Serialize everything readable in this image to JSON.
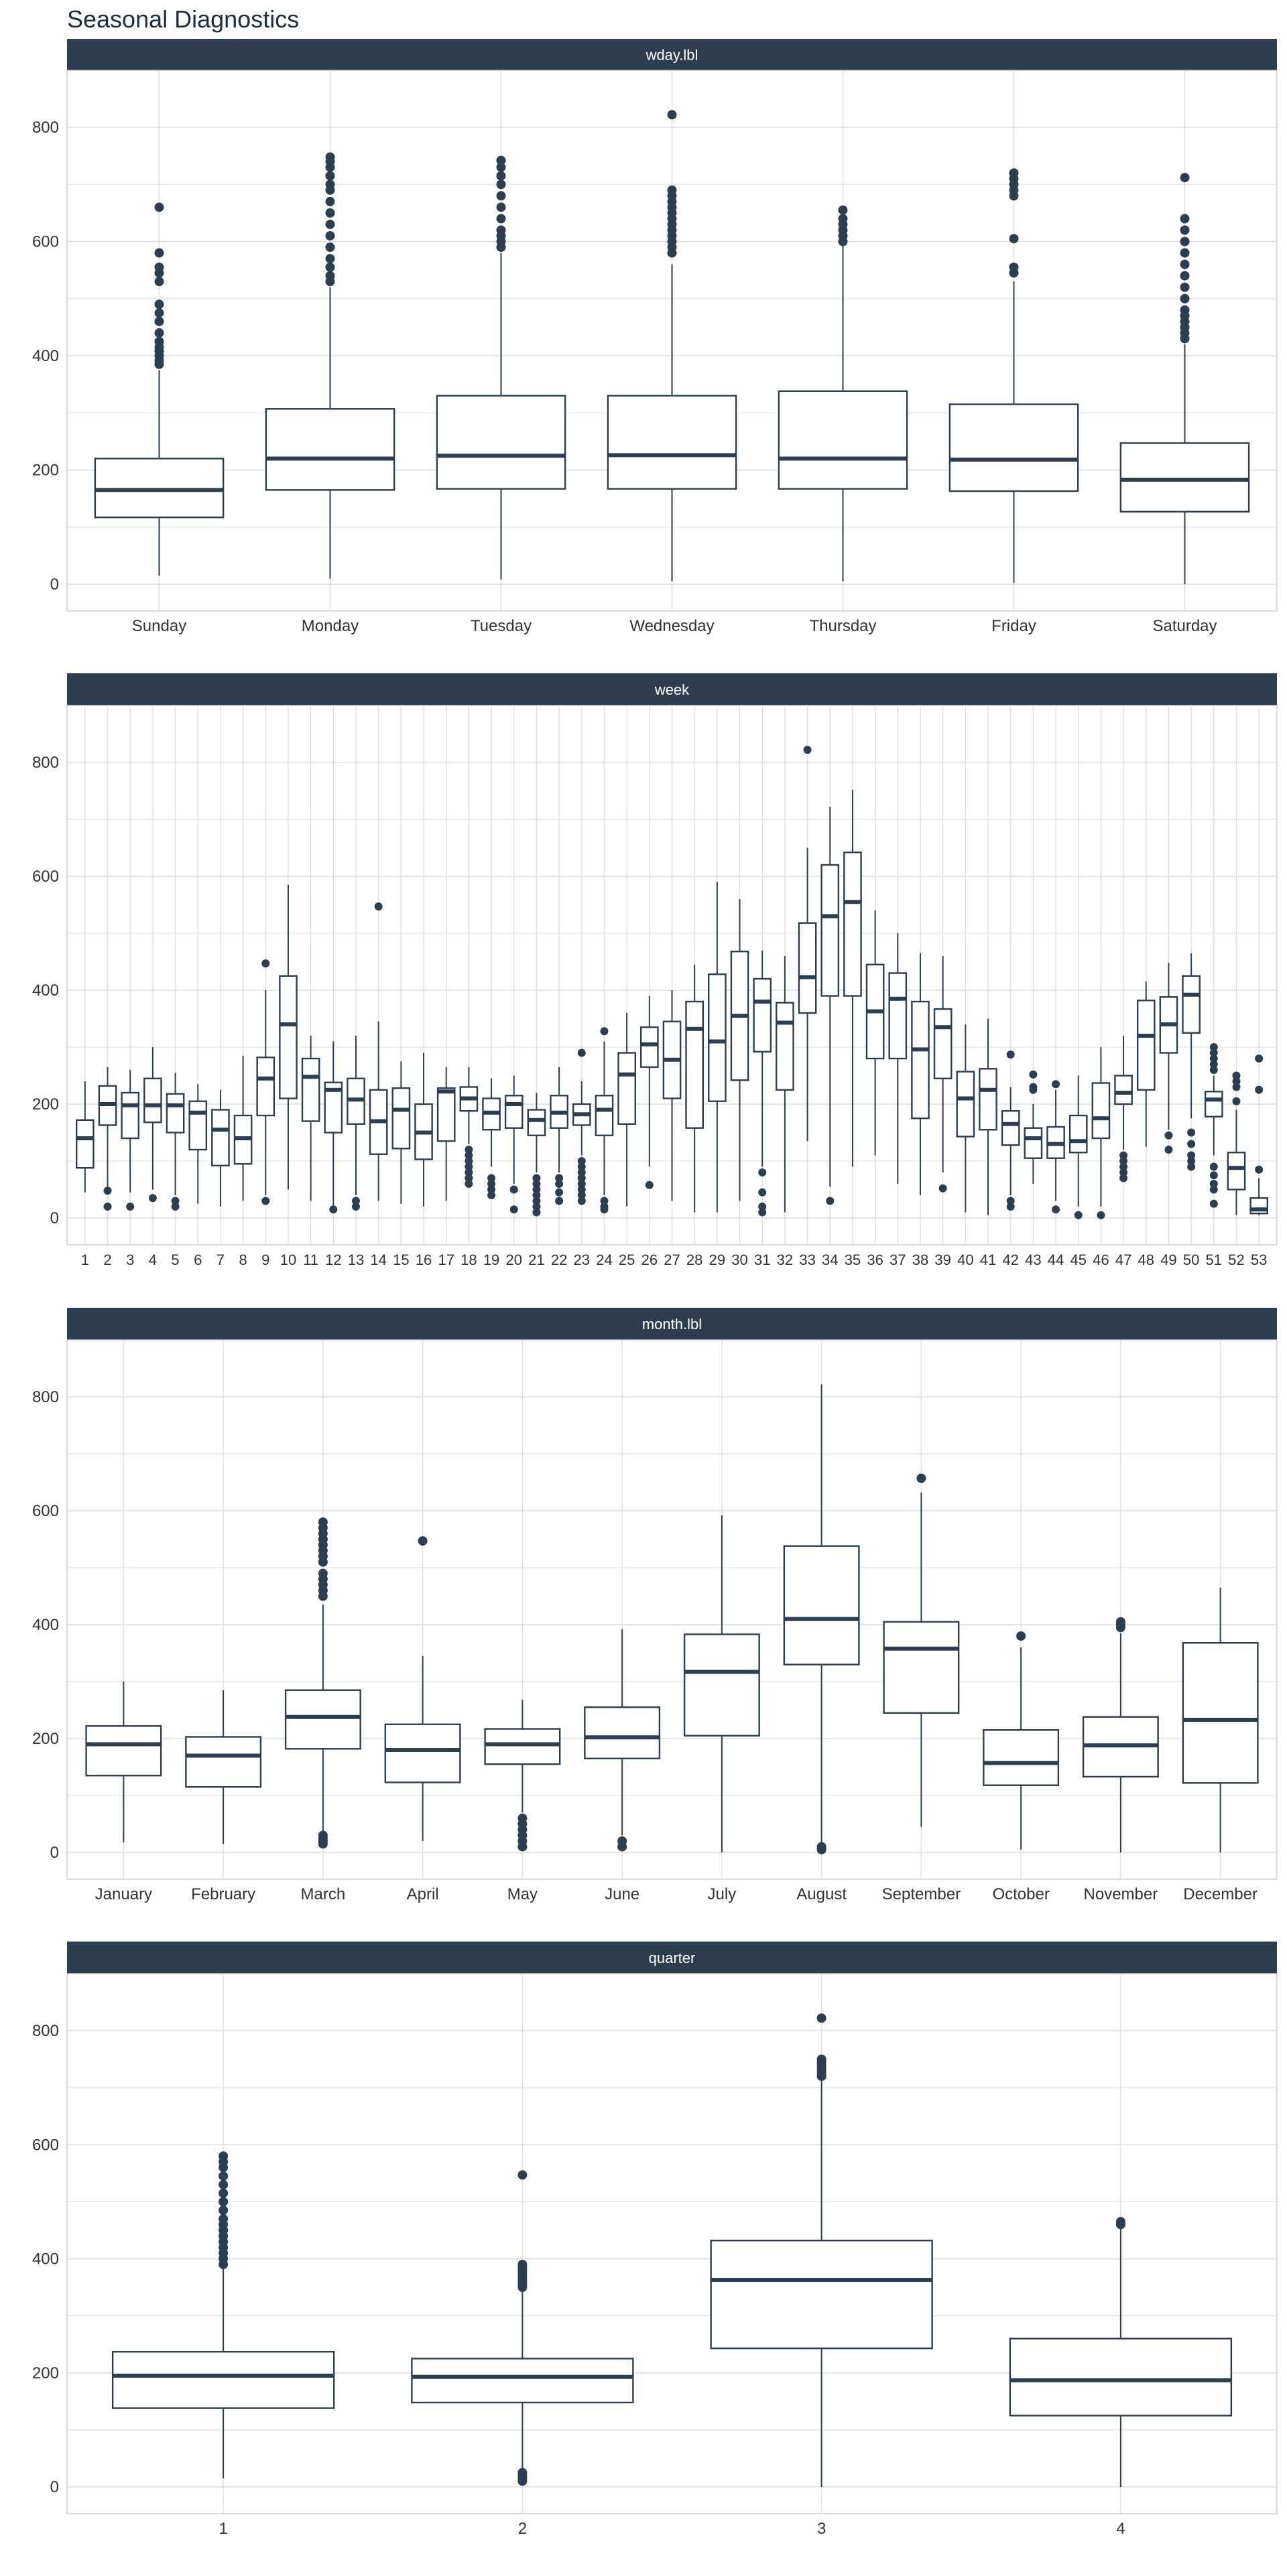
{
  "title": "Seasonal Diagnostics",
  "colors": {
    "strip_bg": "#2c3e50",
    "strip_text": "#ffffff",
    "box": "#2c3e50",
    "grid": "#dedede",
    "axis_text": "#333333",
    "panel_border": "#cfcfcf"
  },
  "chart_data": [
    {
      "type": "box",
      "strip": "wday.lbl",
      "ylim": [
        0,
        850
      ],
      "yticks": [
        0,
        200,
        400,
        600,
        800
      ],
      "categories": [
        "Sunday",
        "Monday",
        "Tuesday",
        "Wednesday",
        "Thursday",
        "Friday",
        "Saturday"
      ],
      "boxes": [
        {
          "min": 15,
          "q1": 117,
          "median": 165,
          "q3": 220,
          "max": 375,
          "outliers": [
            385,
            392,
            400,
            408,
            415,
            425,
            440,
            460,
            475,
            490,
            530,
            545,
            555,
            580,
            660
          ]
        },
        {
          "min": 10,
          "q1": 165,
          "median": 220,
          "q3": 307,
          "max": 520,
          "outliers": [
            530,
            540,
            555,
            570,
            590,
            610,
            630,
            650,
            670,
            690,
            700,
            715,
            730,
            740,
            748
          ]
        },
        {
          "min": 8,
          "q1": 167,
          "median": 225,
          "q3": 330,
          "max": 580,
          "outliers": [
            590,
            600,
            610,
            620,
            640,
            660,
            680,
            700,
            715,
            730,
            742
          ]
        },
        {
          "min": 5,
          "q1": 167,
          "median": 226,
          "q3": 330,
          "max": 560,
          "outliers": [
            580,
            590,
            600,
            610,
            620,
            630,
            640,
            650,
            660,
            670,
            680,
            690,
            822
          ]
        },
        {
          "min": 5,
          "q1": 167,
          "median": 220,
          "q3": 338,
          "max": 595,
          "outliers": [
            600,
            610,
            620,
            630,
            640,
            655
          ]
        },
        {
          "min": 2,
          "q1": 163,
          "median": 218,
          "q3": 315,
          "max": 530,
          "outliers": [
            545,
            555,
            605,
            680,
            690,
            700,
            710,
            720
          ]
        },
        {
          "min": 0,
          "q1": 127,
          "median": 183,
          "q3": 247,
          "max": 420,
          "outliers": [
            430,
            440,
            450,
            460,
            470,
            480,
            500,
            520,
            540,
            560,
            580,
            600,
            620,
            640,
            712
          ]
        }
      ]
    },
    {
      "type": "box",
      "strip": "week",
      "ylim": [
        0,
        850
      ],
      "yticks": [
        0,
        200,
        400,
        600,
        800
      ],
      "categories": [
        "1",
        "2",
        "3",
        "4",
        "5",
        "6",
        "7",
        "8",
        "9",
        "10",
        "11",
        "12",
        "13",
        "14",
        "15",
        "16",
        "17",
        "18",
        "19",
        "20",
        "21",
        "22",
        "23",
        "24",
        "25",
        "26",
        "27",
        "28",
        "29",
        "30",
        "31",
        "32",
        "33",
        "34",
        "35",
        "36",
        "37",
        "38",
        "39",
        "40",
        "41",
        "42",
        "43",
        "44",
        "45",
        "46",
        "47",
        "48",
        "49",
        "50",
        "51",
        "52",
        "53"
      ],
      "boxes": [
        {
          "min": 45,
          "q1": 88,
          "median": 140,
          "q3": 172,
          "max": 240,
          "outliers": []
        },
        {
          "min": 55,
          "q1": 163,
          "median": 200,
          "q3": 232,
          "max": 265,
          "outliers": [
            20,
            48
          ]
        },
        {
          "min": 45,
          "q1": 140,
          "median": 198,
          "q3": 220,
          "max": 260,
          "outliers": [
            20
          ]
        },
        {
          "min": 50,
          "q1": 168,
          "median": 198,
          "q3": 245,
          "max": 300,
          "outliers": [
            35
          ]
        },
        {
          "min": 40,
          "q1": 150,
          "median": 198,
          "q3": 218,
          "max": 255,
          "outliers": [
            20,
            30
          ]
        },
        {
          "min": 25,
          "q1": 120,
          "median": 185,
          "q3": 205,
          "max": 235,
          "outliers": []
        },
        {
          "min": 20,
          "q1": 92,
          "median": 155,
          "q3": 190,
          "max": 225,
          "outliers": []
        },
        {
          "min": 30,
          "q1": 95,
          "median": 140,
          "q3": 180,
          "max": 285,
          "outliers": []
        },
        {
          "min": 40,
          "q1": 180,
          "median": 245,
          "q3": 282,
          "max": 400,
          "outliers": [
            30,
            447
          ]
        },
        {
          "min": 50,
          "q1": 210,
          "median": 340,
          "q3": 425,
          "max": 585,
          "outliers": []
        },
        {
          "min": 30,
          "q1": 170,
          "median": 248,
          "q3": 280,
          "max": 320,
          "outliers": []
        },
        {
          "min": 20,
          "q1": 150,
          "median": 225,
          "q3": 238,
          "max": 310,
          "outliers": [
            15
          ]
        },
        {
          "min": 40,
          "q1": 165,
          "median": 208,
          "q3": 245,
          "max": 320,
          "outliers": [
            20,
            30
          ]
        },
        {
          "min": 30,
          "q1": 112,
          "median": 170,
          "q3": 225,
          "max": 345,
          "outliers": [
            547
          ]
        },
        {
          "min": 25,
          "q1": 122,
          "median": 190,
          "q3": 228,
          "max": 275,
          "outliers": []
        },
        {
          "min": 20,
          "q1": 103,
          "median": 150,
          "q3": 200,
          "max": 290,
          "outliers": []
        },
        {
          "min": 30,
          "q1": 135,
          "median": 222,
          "q3": 228,
          "max": 265,
          "outliers": []
        },
        {
          "min": 130,
          "q1": 188,
          "median": 210,
          "q3": 230,
          "max": 265,
          "outliers": [
            60,
            70,
            80,
            90,
            100,
            110,
            120
          ]
        },
        {
          "min": 90,
          "q1": 155,
          "median": 185,
          "q3": 210,
          "max": 245,
          "outliers": [
            40,
            50,
            60,
            70
          ]
        },
        {
          "min": 60,
          "q1": 158,
          "median": 200,
          "q3": 215,
          "max": 250,
          "outliers": [
            15,
            50
          ]
        },
        {
          "min": 80,
          "q1": 145,
          "median": 172,
          "q3": 190,
          "max": 220,
          "outliers": [
            10,
            20,
            30,
            40,
            50,
            60,
            70
          ]
        },
        {
          "min": 80,
          "q1": 158,
          "median": 185,
          "q3": 215,
          "max": 265,
          "outliers": [
            30,
            45,
            60,
            70
          ]
        },
        {
          "min": 110,
          "q1": 163,
          "median": 182,
          "q3": 200,
          "max": 240,
          "outliers": [
            30,
            40,
            50,
            60,
            70,
            80,
            90,
            100,
            290
          ]
        },
        {
          "min": 40,
          "q1": 145,
          "median": 190,
          "q3": 215,
          "max": 310,
          "outliers": [
            15,
            20,
            30,
            328
          ]
        },
        {
          "min": 20,
          "q1": 165,
          "median": 252,
          "q3": 290,
          "max": 360,
          "outliers": []
        },
        {
          "min": 90,
          "q1": 265,
          "median": 305,
          "q3": 335,
          "max": 390,
          "outliers": [
            58
          ]
        },
        {
          "min": 30,
          "q1": 210,
          "median": 278,
          "q3": 345,
          "max": 400,
          "outliers": []
        },
        {
          "min": 10,
          "q1": 158,
          "median": 332,
          "q3": 380,
          "max": 445,
          "outliers": []
        },
        {
          "min": 10,
          "q1": 205,
          "median": 310,
          "q3": 428,
          "max": 590,
          "outliers": []
        },
        {
          "min": 30,
          "q1": 242,
          "median": 355,
          "q3": 468,
          "max": 560,
          "outliers": []
        },
        {
          "min": 90,
          "q1": 292,
          "median": 380,
          "q3": 420,
          "max": 470,
          "outliers": [
            10,
            20,
            45,
            80
          ]
        },
        {
          "min": 10,
          "q1": 225,
          "median": 343,
          "q3": 378,
          "max": 460,
          "outliers": []
        },
        {
          "min": 135,
          "q1": 360,
          "median": 423,
          "q3": 518,
          "max": 650,
          "outliers": [
            822
          ]
        },
        {
          "min": 55,
          "q1": 390,
          "median": 530,
          "q3": 620,
          "max": 722,
          "outliers": [
            30
          ]
        },
        {
          "min": 90,
          "q1": 390,
          "median": 555,
          "q3": 642,
          "max": 752,
          "outliers": []
        },
        {
          "min": 110,
          "q1": 280,
          "median": 363,
          "q3": 445,
          "max": 540,
          "outliers": []
        },
        {
          "min": 60,
          "q1": 280,
          "median": 385,
          "q3": 430,
          "max": 500,
          "outliers": []
        },
        {
          "min": 40,
          "q1": 175,
          "median": 296,
          "q3": 380,
          "max": 465,
          "outliers": []
        },
        {
          "min": 80,
          "q1": 245,
          "median": 335,
          "q3": 367,
          "max": 460,
          "outliers": [
            52
          ]
        },
        {
          "min": 10,
          "q1": 143,
          "median": 210,
          "q3": 257,
          "max": 340,
          "outliers": []
        },
        {
          "min": 5,
          "q1": 155,
          "median": 225,
          "q3": 262,
          "max": 350,
          "outliers": []
        },
        {
          "min": 40,
          "q1": 128,
          "median": 165,
          "q3": 188,
          "max": 230,
          "outliers": [
            20,
            30,
            287
          ]
        },
        {
          "min": 60,
          "q1": 105,
          "median": 140,
          "q3": 158,
          "max": 200,
          "outliers": [
            225,
            230,
            252
          ]
        },
        {
          "min": 30,
          "q1": 105,
          "median": 130,
          "q3": 160,
          "max": 225,
          "outliers": [
            15,
            235
          ]
        },
        {
          "min": 20,
          "q1": 115,
          "median": 135,
          "q3": 180,
          "max": 250,
          "outliers": [
            5
          ]
        },
        {
          "min": 20,
          "q1": 140,
          "median": 175,
          "q3": 237,
          "max": 300,
          "outliers": [
            5
          ]
        },
        {
          "min": 120,
          "q1": 200,
          "median": 220,
          "q3": 250,
          "max": 320,
          "outliers": [
            70,
            80,
            90,
            100,
            110
          ]
        },
        {
          "min": 125,
          "q1": 225,
          "median": 320,
          "q3": 382,
          "max": 415,
          "outliers": []
        },
        {
          "min": 155,
          "q1": 290,
          "median": 340,
          "q3": 388,
          "max": 448,
          "outliers": [
            120,
            145
          ]
        },
        {
          "min": 175,
          "q1": 325,
          "median": 392,
          "q3": 425,
          "max": 465,
          "outliers": [
            90,
            100,
            110,
            130,
            150
          ]
        },
        {
          "min": 110,
          "q1": 178,
          "median": 208,
          "q3": 222,
          "max": 250,
          "outliers": [
            25,
            50,
            60,
            75,
            90,
            260,
            270,
            280,
            290,
            300
          ]
        },
        {
          "min": 5,
          "q1": 50,
          "median": 88,
          "q3": 115,
          "max": 190,
          "outliers": [
            205,
            230,
            240,
            250
          ]
        },
        {
          "min": 5,
          "q1": 8,
          "median": 15,
          "q3": 35,
          "max": 70,
          "outliers": [
            85,
            225,
            280
          ]
        }
      ]
    },
    {
      "type": "box",
      "strip": "month.lbl",
      "ylim": [
        0,
        850
      ],
      "yticks": [
        0,
        200,
        400,
        600,
        800
      ],
      "categories": [
        "January",
        "February",
        "March",
        "April",
        "May",
        "June",
        "July",
        "August",
        "September",
        "October",
        "November",
        "December"
      ],
      "boxes": [
        {
          "min": 18,
          "q1": 135,
          "median": 190,
          "q3": 222,
          "max": 300,
          "outliers": []
        },
        {
          "min": 15,
          "q1": 115,
          "median": 170,
          "q3": 203,
          "max": 285,
          "outliers": []
        },
        {
          "min": 35,
          "q1": 182,
          "median": 238,
          "q3": 285,
          "max": 435,
          "outliers": [
            15,
            20,
            25,
            30,
            450,
            460,
            470,
            480,
            490,
            510,
            520,
            530,
            540,
            550,
            560,
            570,
            580
          ]
        },
        {
          "min": 20,
          "q1": 123,
          "median": 180,
          "q3": 225,
          "max": 345,
          "outliers": [
            547
          ]
        },
        {
          "min": 70,
          "q1": 155,
          "median": 190,
          "q3": 217,
          "max": 268,
          "outliers": [
            10,
            20,
            30,
            40,
            50,
            60
          ]
        },
        {
          "min": 30,
          "q1": 165,
          "median": 202,
          "q3": 255,
          "max": 392,
          "outliers": [
            10,
            20
          ]
        },
        {
          "min": 0,
          "q1": 205,
          "median": 317,
          "q3": 383,
          "max": 592,
          "outliers": []
        },
        {
          "min": 15,
          "q1": 330,
          "median": 410,
          "q3": 538,
          "max": 822,
          "outliers": [
            5,
            10
          ]
        },
        {
          "min": 45,
          "q1": 245,
          "median": 358,
          "q3": 405,
          "max": 632,
          "outliers": [
            657
          ]
        },
        {
          "min": 5,
          "q1": 118,
          "median": 157,
          "q3": 215,
          "max": 360,
          "outliers": [
            380
          ]
        },
        {
          "min": 0,
          "q1": 133,
          "median": 188,
          "q3": 238,
          "max": 385,
          "outliers": [
            395,
            400,
            405
          ]
        },
        {
          "min": 0,
          "q1": 122,
          "median": 233,
          "q3": 368,
          "max": 465,
          "outliers": []
        }
      ]
    },
    {
      "type": "box",
      "strip": "quarter",
      "ylim": [
        0,
        850
      ],
      "yticks": [
        0,
        200,
        400,
        600,
        800
      ],
      "categories": [
        "1",
        "2",
        "3",
        "4"
      ],
      "boxes": [
        {
          "min": 15,
          "q1": 138,
          "median": 195,
          "q3": 237,
          "max": 385,
          "outliers": [
            390,
            400,
            410,
            420,
            430,
            440,
            450,
            460,
            470,
            485,
            500,
            515,
            530,
            545,
            560,
            570,
            580
          ]
        },
        {
          "min": 30,
          "q1": 148,
          "median": 193,
          "q3": 225,
          "max": 345,
          "outliers": [
            10,
            15,
            20,
            25,
            350,
            355,
            360,
            365,
            370,
            375,
            380,
            385,
            390,
            547
          ]
        },
        {
          "min": 0,
          "q1": 243,
          "median": 363,
          "q3": 432,
          "max": 715,
          "outliers": [
            720,
            725,
            730,
            735,
            740,
            745,
            750,
            822
          ]
        },
        {
          "min": 0,
          "q1": 125,
          "median": 187,
          "q3": 260,
          "max": 455,
          "outliers": [
            460,
            465
          ]
        }
      ]
    }
  ]
}
